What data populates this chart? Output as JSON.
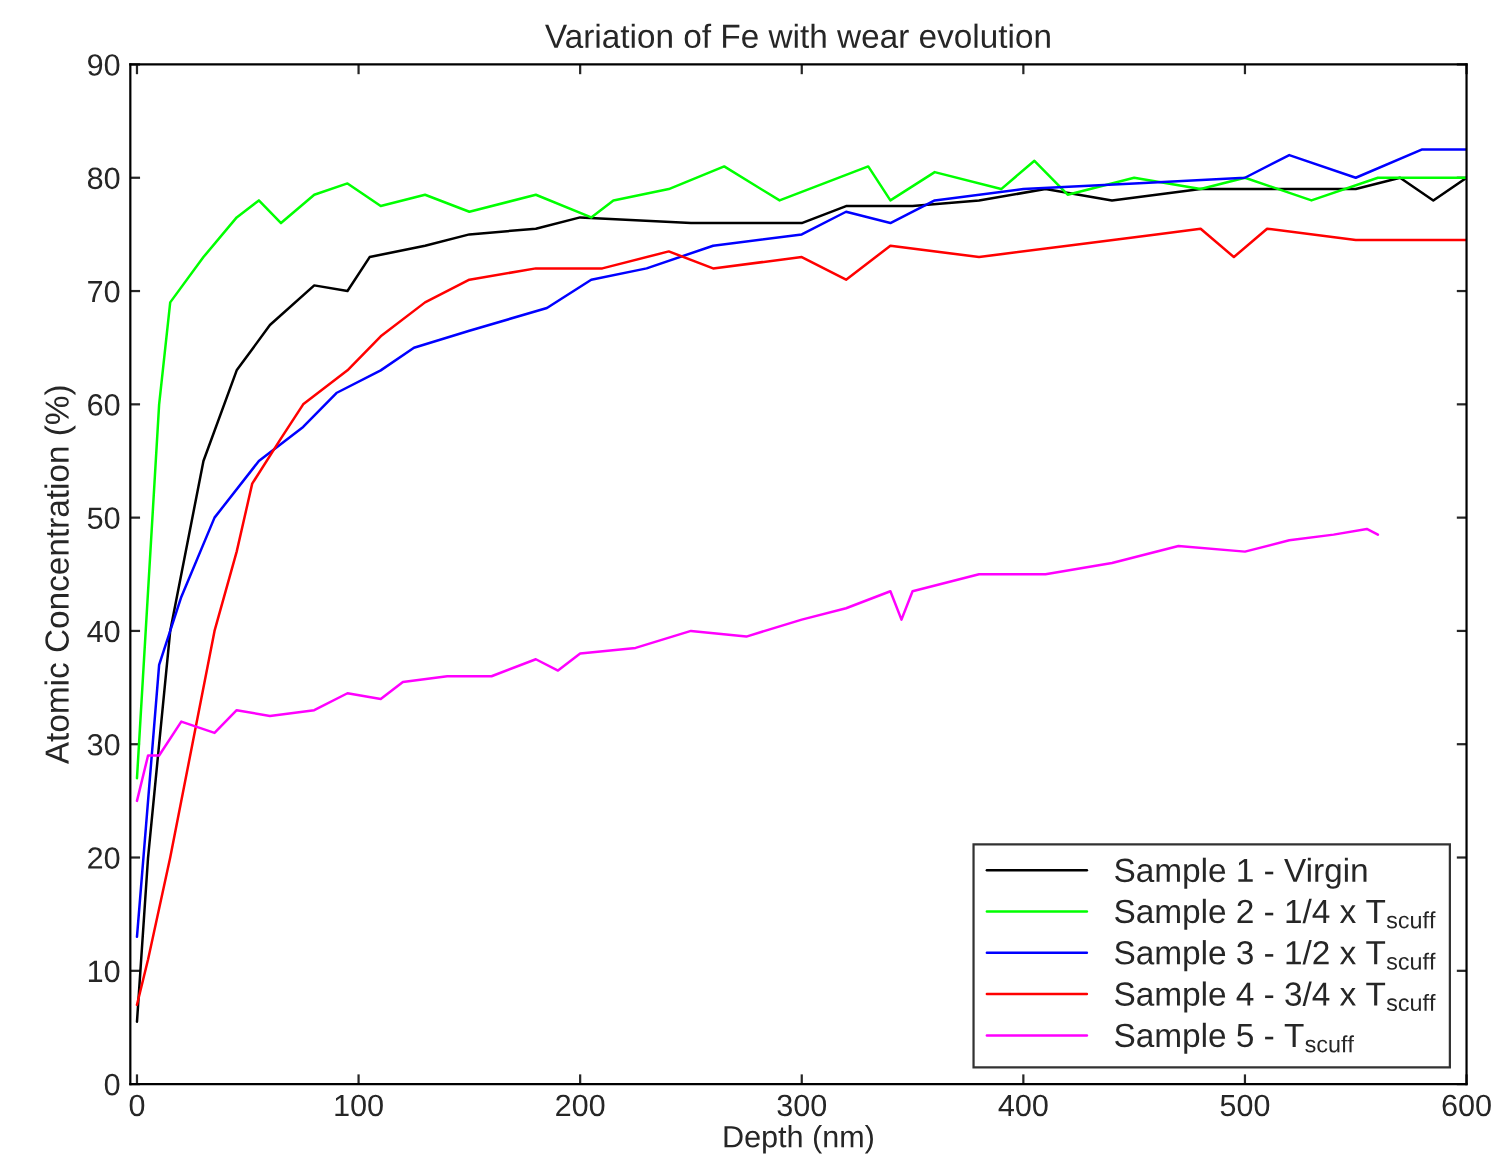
{
  "chart_data": {
    "type": "line",
    "title": "Variation of Fe with wear evolution",
    "xlabel": "Depth (nm)",
    "ylabel": "Atomic Concentration (%)",
    "xlim": [
      -3,
      600
    ],
    "ylim": [
      0,
      90
    ],
    "xticks": [
      0,
      100,
      200,
      300,
      400,
      500,
      600
    ],
    "yticks": [
      0,
      10,
      20,
      30,
      40,
      50,
      60,
      70,
      80,
      90
    ],
    "grid": false,
    "legend": "bottom right",
    "marker": "none",
    "line_style": "solid",
    "series": [
      {
        "name": "Sample 1 - Virgin",
        "color": "#000000",
        "x": [
          0,
          5,
          15,
          30,
          45,
          60,
          80,
          95,
          105,
          130,
          150,
          180,
          200,
          250,
          300,
          320,
          350,
          380,
          410,
          440,
          480,
          520,
          550,
          570,
          585,
          600
        ],
        "values": [
          5.5,
          20,
          40,
          55,
          63,
          67,
          70.5,
          70,
          73,
          74,
          75,
          75.5,
          76.5,
          76,
          76,
          77.5,
          77.5,
          78,
          79,
          78,
          79,
          79,
          79,
          80,
          78,
          80
        ]
      },
      {
        "name": "Sample 2 - 1/4 x T$_{scuff}$",
        "color": "#00ff00",
        "x": [
          0,
          10,
          15,
          30,
          45,
          55,
          65,
          80,
          95,
          110,
          130,
          150,
          180,
          205,
          215,
          240,
          265,
          290,
          330,
          340,
          360,
          390,
          405,
          420,
          450,
          480,
          500,
          530,
          560,
          600
        ],
        "values": [
          27,
          60,
          69,
          73,
          76.5,
          78,
          76,
          78.5,
          79.5,
          77.5,
          78.5,
          77,
          78.5,
          76.5,
          78,
          79,
          81,
          78,
          81,
          78,
          80.5,
          79,
          81.5,
          78.5,
          80,
          79,
          80,
          78,
          80,
          80
        ]
      },
      {
        "name": "Sample 3 - 1/2 x T$_{scuff}$",
        "color": "#0000ff",
        "x": [
          0,
          10,
          20,
          35,
          55,
          75,
          90,
          110,
          125,
          150,
          185,
          205,
          230,
          260,
          300,
          320,
          340,
          360,
          400,
          450,
          500,
          520,
          550,
          580,
          600
        ],
        "values": [
          13,
          37,
          43,
          50,
          55,
          58,
          61,
          63,
          65,
          66.5,
          68.5,
          71,
          72,
          74,
          75,
          77,
          76,
          78,
          79,
          79.5,
          80,
          82,
          80,
          82.5,
          82.5
        ]
      },
      {
        "name": "Sample 4 - 3/4 x T$_{scuff}$",
        "color": "#ff0000",
        "x": [
          0,
          5,
          15,
          25,
          35,
          45,
          52,
          65,
          75,
          95,
          110,
          130,
          150,
          180,
          210,
          240,
          260,
          300,
          320,
          340,
          380,
          420,
          460,
          480,
          495,
          510,
          550,
          600
        ],
        "values": [
          7,
          11,
          20,
          30,
          40,
          47,
          53,
          57,
          60,
          63,
          66,
          69,
          71,
          72,
          72,
          73.5,
          72,
          73,
          71,
          74,
          73,
          74,
          75,
          75.5,
          73,
          75.5,
          74.5,
          74.5
        ]
      },
      {
        "name": "Sample 5 - T$_{scuff}$",
        "color": "#ff00ff",
        "x": [
          0,
          5,
          10,
          20,
          35,
          45,
          60,
          80,
          95,
          110,
          120,
          140,
          160,
          180,
          190,
          200,
          225,
          250,
          275,
          300,
          320,
          340,
          345,
          350,
          380,
          410,
          440,
          470,
          500,
          520,
          540,
          555,
          560
        ],
        "values": [
          25,
          29,
          29,
          32,
          31,
          33,
          32.5,
          33,
          34.5,
          34,
          35.5,
          36,
          36,
          37.5,
          36.5,
          38,
          38.5,
          40,
          39.5,
          41,
          42,
          43.5,
          41,
          43.5,
          45,
          45,
          46,
          47.5,
          47,
          48,
          48.5,
          49,
          48.5
        ]
      }
    ]
  }
}
